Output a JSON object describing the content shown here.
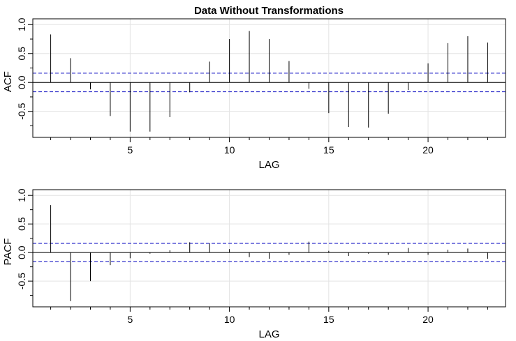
{
  "chart_data": [
    {
      "type": "bar",
      "title": "Data Without Transformations",
      "xlabel": "LAG",
      "ylabel": "ACF",
      "xlim": [
        0.1,
        23.9
      ],
      "ylim": [
        -0.95,
        1.1
      ],
      "xticks": [
        5,
        10,
        15,
        20
      ],
      "xtick_labels": [
        "5",
        "10",
        "15",
        "20"
      ],
      "yticks": [
        -0.5,
        0.0,
        0.5,
        1.0
      ],
      "ytick_labels": [
        "-0.5",
        "0.0",
        "0.5",
        "1.0"
      ],
      "ci": 0.16,
      "grid": true,
      "x": [
        1,
        2,
        3,
        4,
        5,
        6,
        7,
        8,
        9,
        10,
        11,
        12,
        13,
        14,
        15,
        16,
        17,
        18,
        19,
        20,
        21,
        22,
        23
      ],
      "values": [
        0.83,
        0.42,
        -0.12,
        -0.58,
        -0.85,
        -0.85,
        -0.6,
        -0.17,
        0.36,
        0.75,
        0.89,
        0.75,
        0.37,
        -0.11,
        -0.53,
        -0.77,
        -0.78,
        -0.54,
        -0.13,
        0.33,
        0.68,
        0.8,
        0.69
      ]
    },
    {
      "type": "bar",
      "title": "",
      "xlabel": "LAG",
      "ylabel": "PACF",
      "xlim": [
        0.1,
        23.9
      ],
      "ylim": [
        -0.95,
        1.1
      ],
      "xticks": [
        5,
        10,
        15,
        20
      ],
      "xtick_labels": [
        "5",
        "10",
        "15",
        "20"
      ],
      "yticks": [
        -0.5,
        0.0,
        0.5,
        1.0
      ],
      "ytick_labels": [
        "-0.5",
        "0.0",
        "0.5",
        "1.0"
      ],
      "ci": 0.16,
      "grid": true,
      "x": [
        1,
        2,
        3,
        4,
        5,
        6,
        7,
        8,
        9,
        10,
        11,
        12,
        13,
        14,
        15,
        16,
        17,
        18,
        19,
        20,
        21,
        22,
        23
      ],
      "values": [
        0.83,
        -0.85,
        -0.5,
        -0.22,
        -0.1,
        -0.02,
        0.04,
        0.18,
        0.16,
        0.06,
        -0.08,
        -0.11,
        -0.04,
        0.19,
        0.03,
        -0.06,
        -0.02,
        -0.04,
        0.08,
        -0.04,
        0.05,
        0.07,
        -0.11
      ]
    }
  ],
  "colors": {
    "ci_line": "#3333cc",
    "bars": "#000000",
    "grid": "#e3e3e3",
    "frame": "#000000"
  }
}
